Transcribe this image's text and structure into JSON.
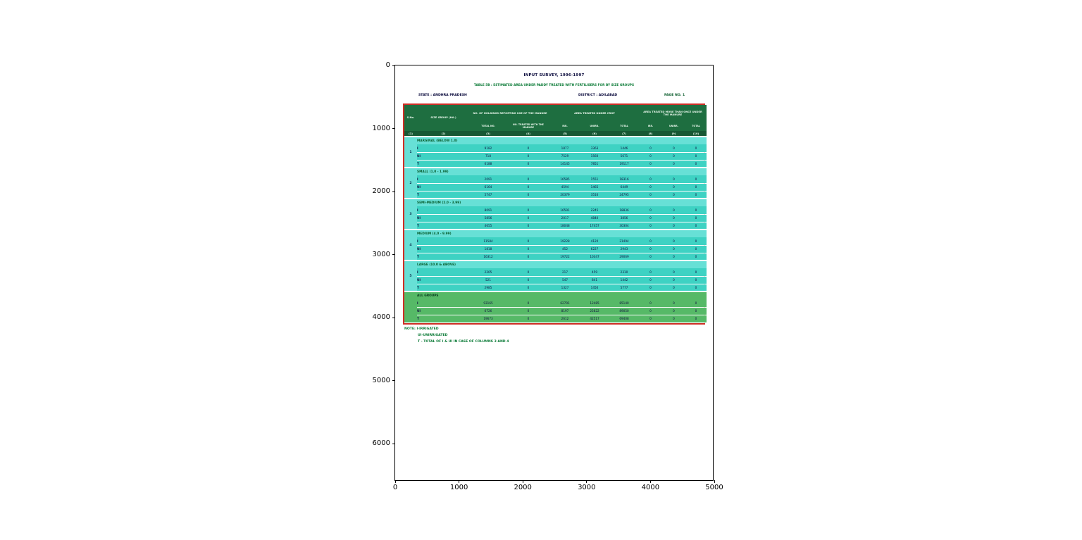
{
  "figure": {
    "x_ticks": [
      "0",
      "1000",
      "2000",
      "3000",
      "4000",
      "5000"
    ],
    "y_ticks": [
      "0",
      "1000",
      "2000",
      "3000",
      "4000",
      "5000",
      "6000"
    ]
  },
  "document": {
    "title": "INPUT SURVEY, 1996-1997",
    "subtitle": "TABLE 5B : ESTIMATED AREA UNDER PADDY TREATED WITH FERTILISERS FOR BY SIZE GROUPS",
    "state": "STATE : ANDHRA PRADESH",
    "district": "DISTRICT : ADILABAD",
    "page": "PAGE NO. 1",
    "notes": [
      "NOTE: I-IRRIGATED",
      "UI-UNIRRIGATED",
      "T - TOTAL OF I & UI IN CASE OF COLUMNS 3 AND 4"
    ]
  },
  "table": {
    "header": {
      "sno": "S.No.",
      "size_group": "SIZE GROUP (HA.)",
      "group1": "NO. OF HOLDINGS REPORTING USE OF THE MANURE",
      "group2": "AREA TREATED UNDER CROP",
      "group3": "AREA TREATED MORE THAN ONCE UNDER THE MANURE",
      "sub": [
        "TOTAL NO.",
        "NO. TREATED WITH THE MANURE",
        "IRR.",
        "UNIRR.",
        "TOTAL",
        "IRR.",
        "UNIRR.",
        "TOTAL"
      ],
      "col_numbers": [
        "(1)",
        "(2)",
        "(3)",
        "(4)",
        "(5)",
        "(6)",
        "(7)",
        "(8)",
        "(9)",
        "(10)"
      ]
    },
    "groups": [
      {
        "sno": "1",
        "label": "MARGINAL (BELOW 1.0)",
        "green": false,
        "rows": [
          {
            "code": "I",
            "values": [
              "9182",
              "0",
              "1877",
              "3363",
              "1446",
              "0",
              "0",
              "0"
            ]
          },
          {
            "code": "UI",
            "values": [
              "718",
              "0",
              "7529",
              "1560",
              "5671",
              "0",
              "0",
              "0"
            ]
          },
          {
            "code": "T",
            "values": [
              "6188",
              "0",
              "14145",
              "7851",
              "19117",
              "0",
              "0",
              "0"
            ]
          }
        ]
      },
      {
        "sno": "2",
        "label": "SMALL (1.0 - 1.99)",
        "green": false,
        "rows": [
          {
            "code": "I",
            "values": [
              "2091",
              "0",
              "16585",
              "1551",
              "18316",
              "0",
              "0",
              "0"
            ]
          },
          {
            "code": "UI",
            "values": [
              "6164",
              "0",
              "4594",
              "1465",
              "6449",
              "0",
              "0",
              "0"
            ]
          },
          {
            "code": "T",
            "values": [
              "5747",
              "0",
              "20379",
              "3516",
              "24795",
              "0",
              "0",
              "0"
            ]
          }
        ]
      },
      {
        "sno": "3",
        "label": "SEMI-MEDIUM (2.0 - 3.99)",
        "green": false,
        "rows": [
          {
            "code": "I",
            "values": [
              "8091",
              "0",
              "16591",
              "2245",
              "18836",
              "0",
              "0",
              "0"
            ]
          },
          {
            "code": "UI",
            "values": [
              "5856",
              "0",
              "2017",
              "4840",
              "3856",
              "0",
              "0",
              "0"
            ]
          },
          {
            "code": "T",
            "values": [
              "4655",
              "0",
              "18048",
              "17457",
              "30304",
              "0",
              "0",
              "0"
            ]
          }
        ]
      },
      {
        "sno": "4",
        "label": "MEDIUM (4.0 - 9.99)",
        "green": false,
        "rows": [
          {
            "code": "I",
            "values": [
              "11584",
              "0",
              "19228",
              "4120",
              "21494",
              "0",
              "0",
              "0"
            ]
          },
          {
            "code": "UI",
            "values": [
              "1818",
              "0",
              "452",
              "6227",
              "2943",
              "0",
              "0",
              "0"
            ]
          },
          {
            "code": "T",
            "values": [
              "16312",
              "0",
              "19722",
              "10347",
              "29069",
              "0",
              "0",
              "0"
            ]
          }
        ]
      },
      {
        "sno": "5",
        "label": "LARGE (10.0 & ABOVE)",
        "green": false,
        "rows": [
          {
            "code": "I",
            "values": [
              "2205",
              "0",
              "217",
              "459",
              "2310",
              "0",
              "0",
              "0"
            ]
          },
          {
            "code": "UI",
            "values": [
              "521",
              "0",
              "547",
              "841",
              "1442",
              "0",
              "0",
              "0"
            ]
          },
          {
            "code": "T",
            "values": [
              "2985",
              "0",
              "1327",
              "1450",
              "5777",
              "0",
              "0",
              "0"
            ]
          }
        ]
      },
      {
        "sno": "",
        "label": "ALL GROUPS",
        "green": true,
        "rows": [
          {
            "code": "I",
            "values": [
              "93165",
              "0",
              "62791",
              "12485",
              "85140",
              "0",
              "0",
              "0"
            ]
          },
          {
            "code": "UI",
            "values": [
              "6726",
              "0",
              "8197",
              "25822",
              "89050",
              "0",
              "0",
              "0"
            ]
          },
          {
            "code": "T",
            "values": [
              "19673",
              "0",
              "2612",
              "42517",
              "69408",
              "0",
              "0",
              "0"
            ]
          }
        ]
      }
    ]
  }
}
